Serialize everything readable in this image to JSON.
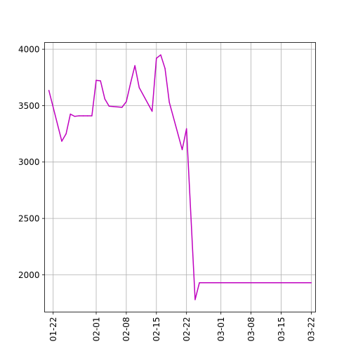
{
  "chart_data": {
    "type": "line",
    "title": "",
    "xlabel": "",
    "ylabel": "",
    "grid": true,
    "legend": "none",
    "x_axis": "date",
    "xlim": [
      "2024-01-20",
      "2024-03-23"
    ],
    "ylim": [
      1670,
      4060
    ],
    "x_tick_labels": [
      "01-22",
      "02-01",
      "02-08",
      "02-15",
      "02-22",
      "03-01",
      "03-08",
      "03-15",
      "03-22"
    ],
    "x_tick_dates": [
      "2024-01-22",
      "2024-02-01",
      "2024-02-08",
      "2024-02-15",
      "2024-02-22",
      "2024-03-01",
      "2024-03-08",
      "2024-03-15",
      "2024-03-22"
    ],
    "y_ticks": [
      2000,
      2500,
      3000,
      3500,
      4000
    ],
    "y_tick_labels": [
      "2000",
      "2500",
      "3000",
      "3500",
      "4000"
    ],
    "series": [
      {
        "color": "#bf00bf",
        "x": [
          "2024-01-21",
          "2024-01-24",
          "2024-01-25",
          "2024-01-26",
          "2024-01-27",
          "2024-01-28",
          "2024-01-29",
          "2024-01-30",
          "2024-01-31",
          "2024-02-01",
          "2024-02-02",
          "2024-02-03",
          "2024-02-04",
          "2024-02-07",
          "2024-02-08",
          "2024-02-09",
          "2024-02-10",
          "2024-02-11",
          "2024-02-14",
          "2024-02-15",
          "2024-02-16",
          "2024-02-17",
          "2024-02-18",
          "2024-02-21",
          "2024-02-22",
          "2024-02-24",
          "2024-02-25",
          "2024-03-22"
        ],
        "y": [
          3635,
          3185,
          3250,
          3425,
          3405,
          3410,
          3410,
          3410,
          3410,
          3725,
          3720,
          3560,
          3495,
          3485,
          3535,
          3700,
          3855,
          3660,
          3450,
          3920,
          3950,
          3830,
          3530,
          3110,
          3295,
          1780,
          1930,
          1930
        ]
      }
    ]
  }
}
